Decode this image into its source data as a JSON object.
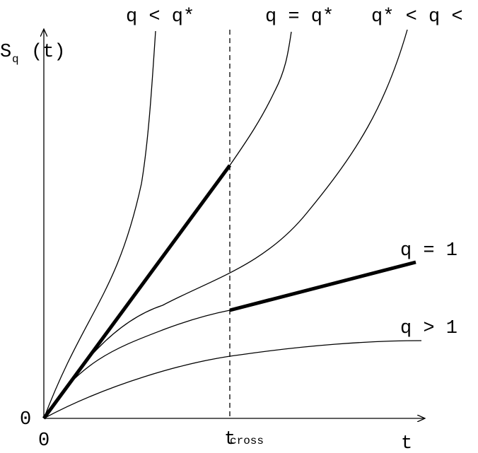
{
  "axes": {
    "y_label_main": "S",
    "y_label_sub": "q",
    "y_label_arg": "(t)",
    "x_label": "t",
    "origin_y": "0",
    "origin_x": "0",
    "t_cross_main": "t",
    "t_cross_sub": "cross"
  },
  "curve_labels": {
    "q_less_qstar": "q < q*",
    "q_eq_qstar": "q = q*",
    "qstar_lt_q": "q* < q <",
    "q_eq_1": "q = 1",
    "q_gt_1": "q > 1"
  },
  "colors": {
    "ink": "#000000",
    "background": "#ffffff"
  }
}
